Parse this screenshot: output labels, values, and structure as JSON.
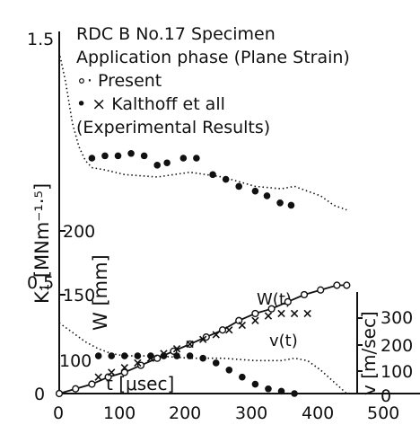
{
  "chart_data": {
    "type": "scatter",
    "legend": {
      "lines": [
        "RDC B No.17 Specimen",
        "Application phase (Plane Strain)",
        "∘· Present",
        "• × Kalthoff et all",
        "(Experimental Results)"
      ],
      "placement": "top-right"
    },
    "x_axis": {
      "label": "t [μsec]",
      "range": [
        0,
        500
      ],
      "ticks": [
        "0",
        "100",
        "200",
        "300",
        "400",
        "500"
      ]
    },
    "y_axis_K": {
      "label": "K₁ [MNm⁻¹·⁵]",
      "range": [
        0,
        1.5
      ],
      "ticks": [
        "0",
        "0.5",
        "1.5"
      ]
    },
    "y_axis_W": {
      "label": "W [mm]",
      "ticks": [
        "100",
        "150",
        "200"
      ],
      "ticks_display": [
        "100",
        "150",
        "200"
      ]
    },
    "y_axis_v": {
      "label": "v [m/sec]",
      "ticks": [
        "0",
        "100",
        "200",
        "300"
      ]
    },
    "curve_labels": {
      "W": "W(t)",
      "v": "v(t)"
    },
    "series": [
      {
        "name": "Present",
        "kind": "K-dotted",
        "x": [
          0,
          10,
          20,
          30,
          40,
          50,
          70,
          100,
          150,
          200,
          250,
          300,
          340,
          360,
          380,
          400,
          420,
          440
        ],
        "y": [
          1.45,
          1.32,
          1.15,
          1.05,
          0.99,
          0.96,
          0.95,
          0.93,
          0.92,
          0.94,
          0.92,
          0.88,
          0.87,
          0.88,
          0.86,
          0.84,
          0.8,
          0.78
        ]
      },
      {
        "name": "Kalthoff et all",
        "kind": "K-dots",
        "x": [
          50,
          70,
          90,
          110,
          130,
          150,
          165,
          190,
          210,
          235,
          255,
          275,
          300,
          318,
          338,
          355
        ],
        "y": [
          1.0,
          1.01,
          1.01,
          1.02,
          1.01,
          0.97,
          0.98,
          1.0,
          1.0,
          0.93,
          0.91,
          0.88,
          0.86,
          0.84,
          0.81,
          0.8
        ]
      },
      {
        "name": "W(t) Present",
        "kind": "W-line",
        "x": [
          0,
          25,
          50,
          75,
          100,
          125,
          150,
          175,
          200,
          225,
          250,
          275,
          300,
          325,
          350,
          375,
          400,
          425,
          440
        ],
        "y": [
          0.0,
          0.02,
          0.04,
          0.07,
          0.09,
          0.12,
          0.15,
          0.18,
          0.21,
          0.24,
          0.27,
          0.31,
          0.34,
          0.36,
          0.39,
          0.42,
          0.44,
          0.46,
          0.46
        ]
      },
      {
        "name": "W(t) Kalthoff et all",
        "kind": "W-cross",
        "x": [
          60,
          80,
          100,
          120,
          140,
          160,
          180,
          200,
          220,
          240,
          260,
          280,
          300,
          320,
          340,
          360,
          380
        ],
        "y": [
          0.07,
          0.09,
          0.11,
          0.13,
          0.15,
          0.17,
          0.19,
          0.21,
          0.23,
          0.25,
          0.27,
          0.29,
          0.31,
          0.33,
          0.34,
          0.34,
          0.34
        ]
      },
      {
        "name": "v(t) Present",
        "kind": "v-dotted",
        "x": [
          0,
          20,
          40,
          60,
          80,
          100,
          150,
          200,
          250,
          300,
          340,
          360,
          380,
          400,
          420,
          440
        ],
        "y": [
          0.3,
          0.26,
          0.22,
          0.19,
          0.17,
          0.16,
          0.16,
          0.15,
          0.15,
          0.14,
          0.14,
          0.15,
          0.14,
          0.1,
          0.05,
          0.0
        ]
      },
      {
        "name": "v(t) Kalthoff et all",
        "kind": "v-dots",
        "x": [
          60,
          80,
          100,
          120,
          140,
          160,
          180,
          200,
          220,
          240,
          260,
          280,
          300,
          320,
          340,
          360
        ],
        "y": [
          0.16,
          0.16,
          0.16,
          0.16,
          0.16,
          0.16,
          0.16,
          0.16,
          0.15,
          0.13,
          0.1,
          0.07,
          0.04,
          0.02,
          0.01,
          0.0
        ]
      }
    ]
  }
}
